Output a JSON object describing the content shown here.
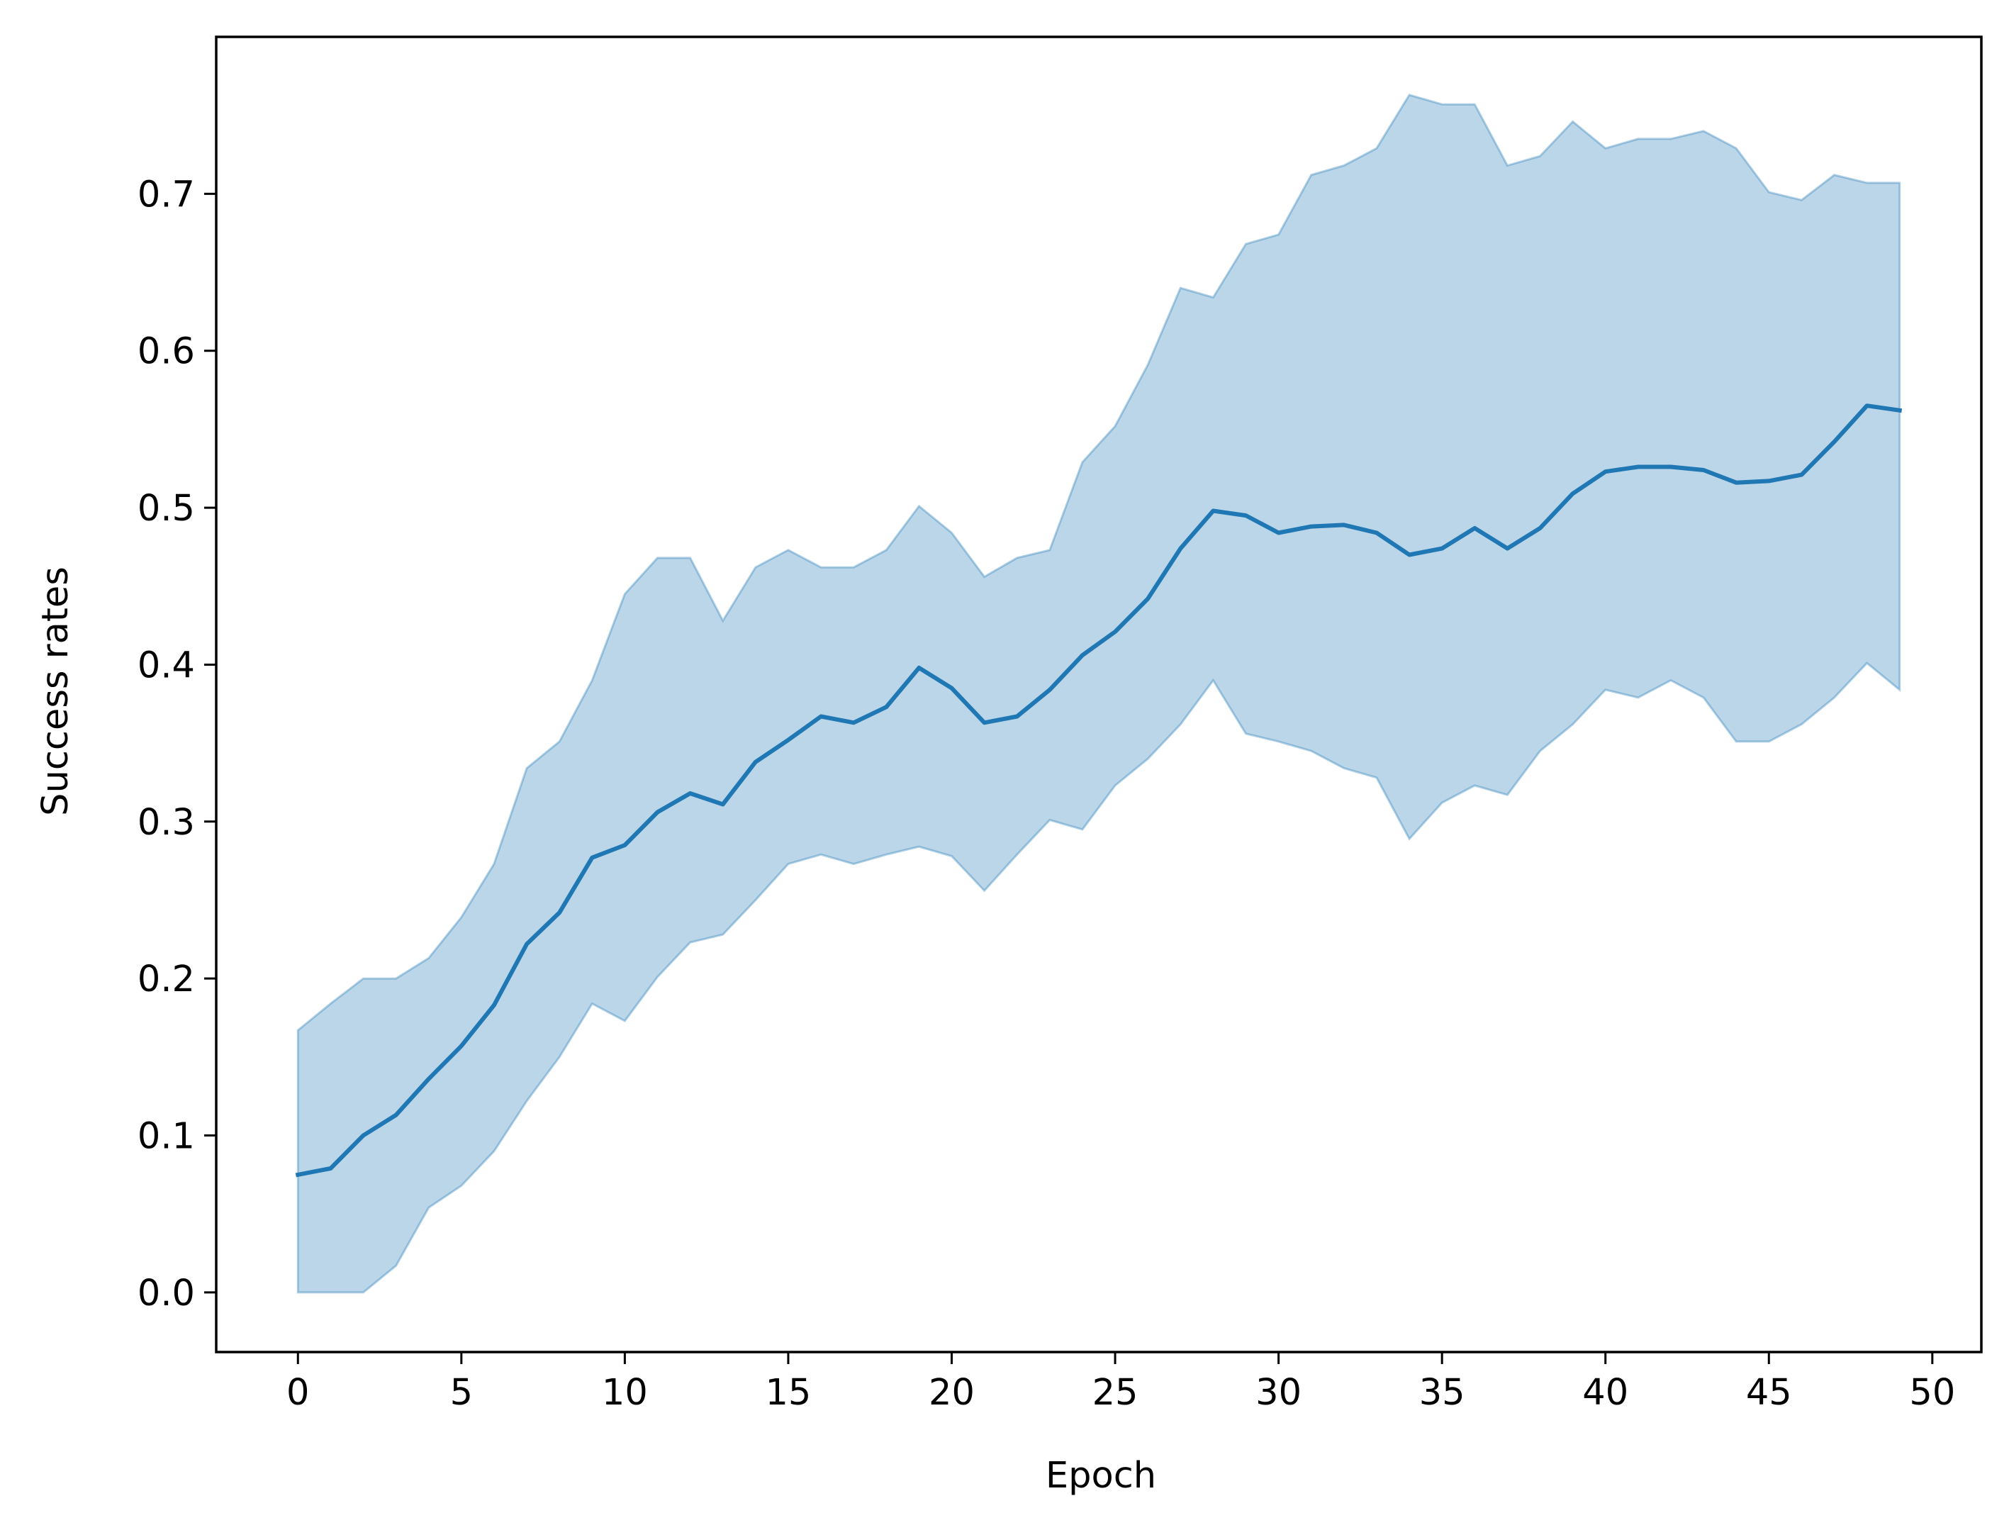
{
  "chart_data": {
    "type": "line",
    "title": "",
    "xlabel": "Epoch",
    "ylabel": "Success rates",
    "xlim": [
      -2.5,
      51.5
    ],
    "ylim": [
      -0.038,
      0.8
    ],
    "xticks": [
      0,
      5,
      10,
      15,
      20,
      25,
      30,
      35,
      40,
      45,
      50
    ],
    "xtick_labels": [
      "0",
      "5",
      "10",
      "15",
      "20",
      "25",
      "30",
      "35",
      "40",
      "45",
      "50"
    ],
    "yticks": [
      0.0,
      0.1,
      0.2,
      0.3,
      0.4,
      0.5,
      0.6,
      0.7
    ],
    "ytick_labels": [
      "0.0",
      "0.1",
      "0.2",
      "0.3",
      "0.4",
      "0.5",
      "0.6",
      "0.7"
    ],
    "grid": false,
    "legend": "none",
    "colors": {
      "line": "#1f77b4",
      "band": "#1f77b4"
    },
    "series": [
      {
        "x": [
          0,
          1,
          2,
          3,
          4,
          5,
          6,
          7,
          8,
          9,
          10,
          11,
          12,
          13,
          14,
          15,
          16,
          17,
          18,
          19,
          20,
          21,
          22,
          23,
          24,
          25,
          26,
          27,
          28,
          29,
          30,
          31,
          32,
          33,
          34,
          35,
          36,
          37,
          38,
          39,
          40,
          41,
          42,
          43,
          44,
          45,
          46,
          47,
          48,
          49
        ],
        "mean": [
          0.075,
          0.079,
          0.1,
          0.113,
          0.136,
          0.157,
          0.183,
          0.222,
          0.242,
          0.277,
          0.285,
          0.306,
          0.318,
          0.311,
          0.338,
          0.352,
          0.367,
          0.363,
          0.373,
          0.398,
          0.385,
          0.363,
          0.367,
          0.384,
          0.406,
          0.421,
          0.442,
          0.474,
          0.498,
          0.495,
          0.484,
          0.488,
          0.489,
          0.484,
          0.47,
          0.474,
          0.487,
          0.474,
          0.487,
          0.509,
          0.523,
          0.526,
          0.526,
          0.524,
          0.516,
          0.517,
          0.521,
          0.542,
          0.565,
          0.562
        ],
        "lower": [
          0.0,
          0.0,
          0.0,
          0.017,
          0.054,
          0.068,
          0.09,
          0.122,
          0.15,
          0.184,
          0.173,
          0.201,
          0.223,
          0.228,
          0.25,
          0.273,
          0.279,
          0.273,
          0.279,
          0.284,
          0.278,
          0.256,
          0.279,
          0.301,
          0.295,
          0.323,
          0.34,
          0.362,
          0.39,
          0.356,
          0.351,
          0.345,
          0.334,
          0.328,
          0.289,
          0.312,
          0.323,
          0.317,
          0.345,
          0.362,
          0.384,
          0.379,
          0.39,
          0.379,
          0.351,
          0.351,
          0.362,
          0.379,
          0.401,
          0.384
        ],
        "upper": [
          0.167,
          0.184,
          0.2,
          0.2,
          0.213,
          0.239,
          0.273,
          0.334,
          0.351,
          0.39,
          0.445,
          0.468,
          0.468,
          0.428,
          0.462,
          0.473,
          0.462,
          0.462,
          0.473,
          0.501,
          0.484,
          0.456,
          0.468,
          0.473,
          0.529,
          0.552,
          0.591,
          0.64,
          0.634,
          0.668,
          0.674,
          0.712,
          0.718,
          0.729,
          0.763,
          0.757,
          0.757,
          0.718,
          0.724,
          0.746,
          0.729,
          0.735,
          0.735,
          0.74,
          0.729,
          0.701,
          0.696,
          0.712,
          0.707,
          0.707
        ]
      }
    ]
  }
}
